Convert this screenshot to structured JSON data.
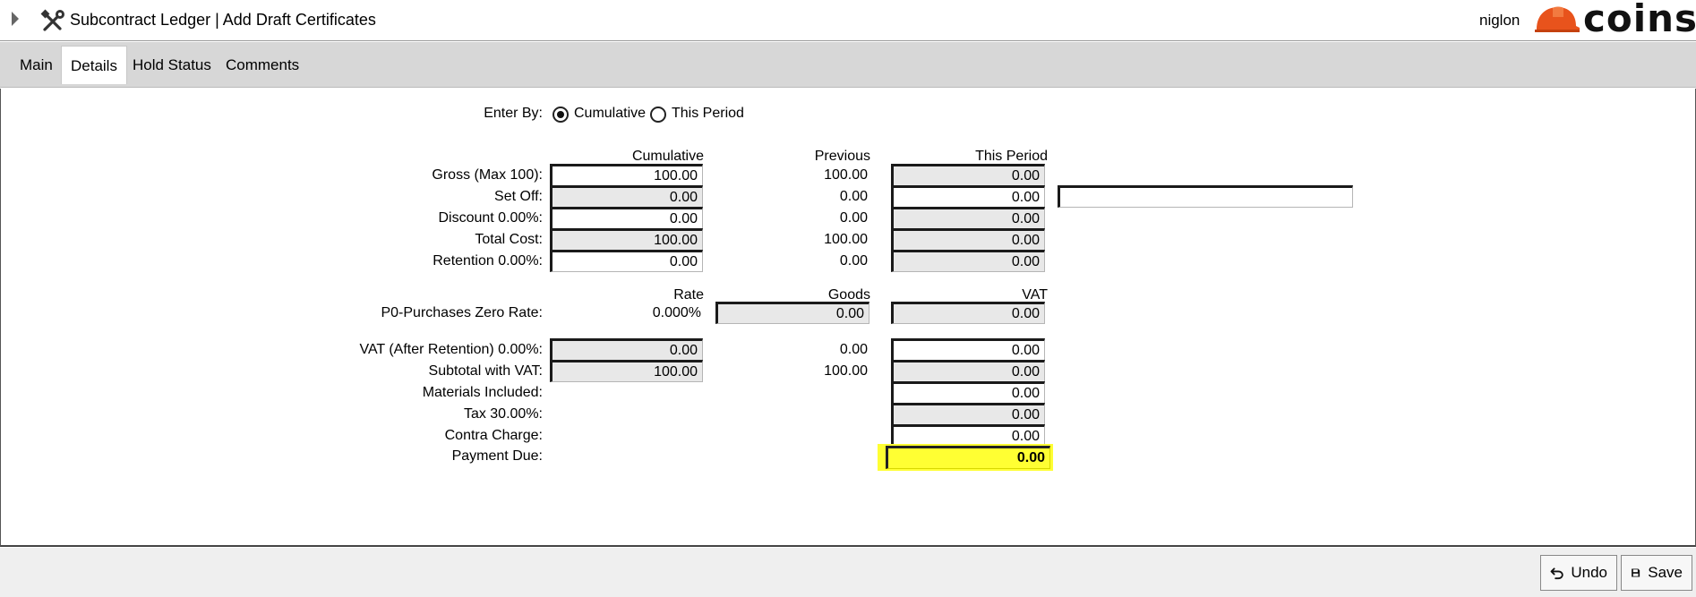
{
  "window": {
    "title": "Subcontract Ledger | Add Draft Certificates",
    "user": "niglon",
    "logo_text": "coins",
    "icons": {
      "expander": "expand-arrow-icon",
      "app": "tools-icon",
      "logo": "hard-hat-icon"
    }
  },
  "tabs": [
    {
      "label": "Main",
      "active": false
    },
    {
      "label": "Details",
      "active": true
    },
    {
      "label": "Hold Status",
      "active": false
    },
    {
      "label": "Comments",
      "active": false
    }
  ],
  "enter_by": {
    "label": "Enter By:",
    "options": [
      "Cumulative",
      "This Period"
    ],
    "selected": "Cumulative"
  },
  "columns": {
    "cumulative": "Cumulative",
    "previous": "Previous",
    "this_period": "This Period"
  },
  "rows": {
    "gross": {
      "label": "Gross (Max 100):",
      "cumulative": "100.00",
      "previous": "100.00",
      "this_period": "0.00"
    },
    "set_off": {
      "label": "Set Off:",
      "cumulative": "0.00",
      "previous": "0.00",
      "this_period": "0.00",
      "note": ""
    },
    "discount": {
      "label": "Discount 0.00%:",
      "cumulative": "0.00",
      "previous": "0.00",
      "this_period": "0.00"
    },
    "total_cost": {
      "label": "Total Cost:",
      "cumulative": "100.00",
      "previous": "100.00",
      "this_period": "0.00"
    },
    "retention": {
      "label": "Retention 0.00%:",
      "cumulative": "0.00",
      "previous": "0.00",
      "this_period": "0.00"
    }
  },
  "vat_columns": {
    "rate": "Rate",
    "goods": "Goods",
    "vat": "VAT"
  },
  "vat_row": {
    "label": "P0-Purchases Zero Rate:",
    "rate": "0.000%",
    "goods": "0.00",
    "vat": "0.00"
  },
  "totals": {
    "vat_after_retention": {
      "label": "VAT (After Retention) 0.00%:",
      "cumulative": "0.00",
      "previous": "0.00",
      "this_period": "0.00"
    },
    "subtotal_with_vat": {
      "label": "Subtotal with VAT:",
      "cumulative": "100.00",
      "previous": "100.00",
      "this_period": "0.00"
    },
    "materials_included": {
      "label": "Materials Included:",
      "this_period": "0.00"
    },
    "tax": {
      "label": "Tax 30.00%:",
      "this_period": "0.00"
    },
    "contra_charge": {
      "label": "Contra Charge:",
      "this_period": "0.00"
    },
    "payment_due": {
      "label": "Payment Due:",
      "value": "0.00",
      "highlight_color": "#ffff33"
    }
  },
  "footer": {
    "undo_label": "Undo",
    "save_label": "Save",
    "icons": {
      "undo": "undo-icon",
      "save": "save-icon"
    }
  }
}
